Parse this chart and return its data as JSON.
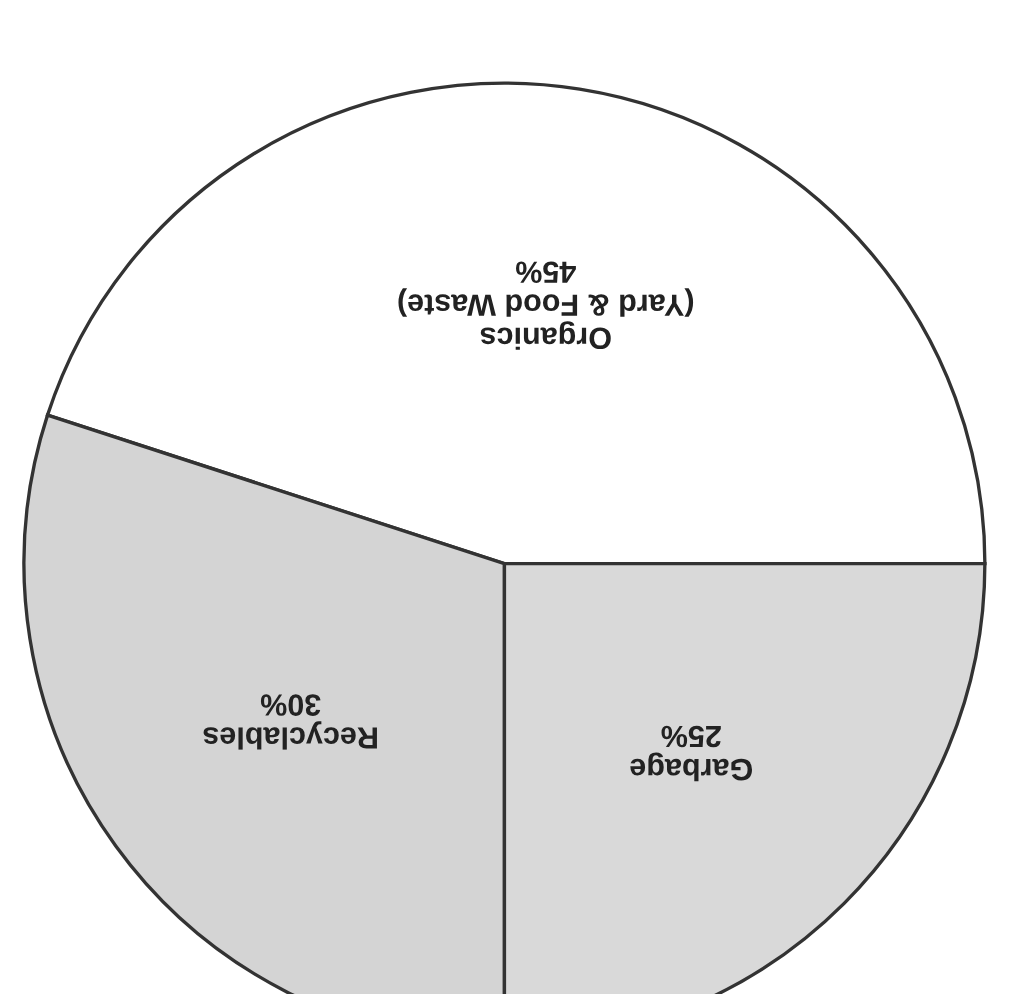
{
  "chart_data": {
    "type": "pie",
    "categories": [
      "Organics\n(Yard & Food Waste)",
      "Recyclables",
      "Garbage"
    ],
    "values": [
      45,
      30,
      25
    ],
    "value_labels": [
      "45%",
      "30%",
      "25%"
    ],
    "colors": [
      "#ffffff",
      "#d4d4d4",
      "#d9d9d9"
    ]
  }
}
